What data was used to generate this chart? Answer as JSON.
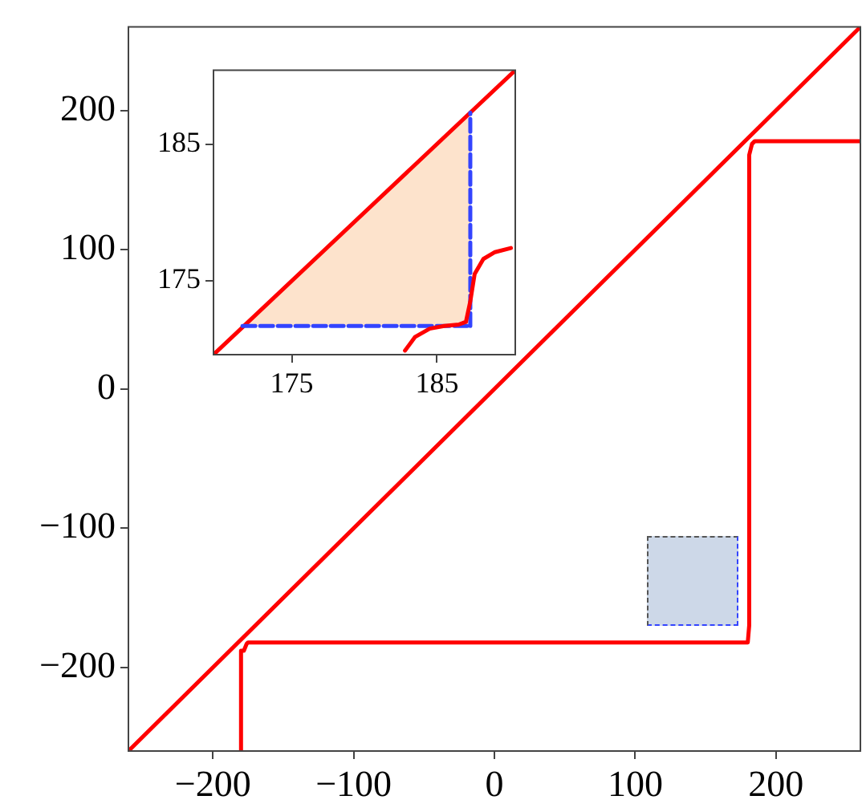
{
  "chart_data": [
    {
      "type": "line",
      "xlim": [
        -260,
        260
      ],
      "ylim": [
        -260,
        260
      ],
      "xticks": [
        -200,
        -100,
        0,
        100,
        200
      ],
      "yticks": [
        -200,
        -100,
        0,
        100,
        200
      ],
      "line_style": "solid",
      "marker": "none",
      "series": [
        {
          "type": "line",
          "color": "#ff0000",
          "x": [
            -260,
            260
          ],
          "values": [
            -260,
            260
          ]
        },
        {
          "type": "line",
          "color": "#ff0000",
          "x": [
            -180,
            -180,
            -178,
            -176,
            -175,
            180,
            181,
            181,
            183,
            185,
            260
          ],
          "values": [
            -260,
            -188,
            -188,
            -183,
            -182,
            -182,
            -170,
            168,
            176,
            178,
            178
          ]
        }
      ]
    },
    {
      "type": "line",
      "xlim": [
        169.6,
        190.4
      ],
      "ylim": [
        169.6,
        190.4
      ],
      "xticks": [
        175,
        185
      ],
      "yticks": [
        175,
        185
      ],
      "line_style": "solid",
      "marker": "none",
      "series": [
        {
          "type": "area",
          "color": "#fde3cc",
          "x": [
            171.6,
            187.3
          ],
          "values": [
            171.6,
            187.3
          ]
        },
        {
          "type": "line",
          "color": "#ff0000",
          "x": [
            169.6,
            190.4
          ],
          "values": [
            169.6,
            190.4
          ]
        },
        {
          "type": "line",
          "color": "#3344ff",
          "line_style": "dashed",
          "x": [
            171.6,
            187.3
          ],
          "values": [
            171.7,
            171.7
          ]
        },
        {
          "type": "line",
          "color": "#3344ff",
          "line_style": "dashed",
          "x": [
            187.3,
            187.3
          ],
          "values": [
            171.7,
            187.3
          ]
        },
        {
          "type": "line",
          "color": "#ff0000",
          "x": [
            182.8,
            183.5,
            184.5,
            185.5,
            186.5,
            187,
            187.3,
            187.6,
            188.2,
            189,
            190.1
          ],
          "values": [
            169.9,
            170.9,
            171.5,
            171.7,
            171.8,
            172,
            173.5,
            175.5,
            176.6,
            177.1,
            177.4
          ]
        }
      ]
    }
  ]
}
